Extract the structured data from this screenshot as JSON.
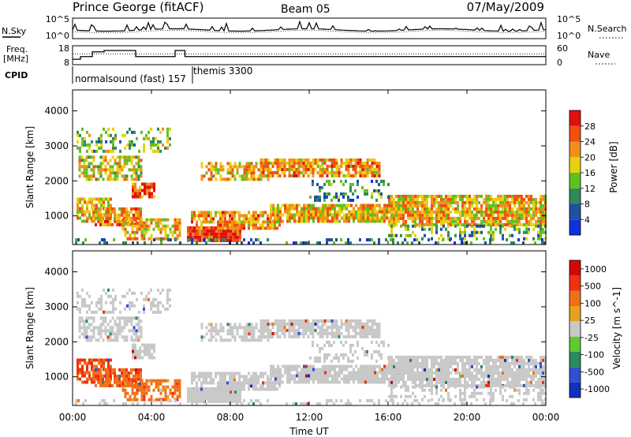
{
  "header": {
    "station": "Prince George (fitACF)",
    "beam": "Beam 05",
    "date": "07/May/2009"
  },
  "noise_panel": {
    "left_label": "N.Sky",
    "right_label": "N.Search",
    "ticks_left": [
      "10^5",
      "10^0"
    ],
    "ticks_right": [
      "10^5",
      "10^0"
    ]
  },
  "freq_panel": {
    "left_label_1": "Freq.",
    "left_label_2": "[MHz]",
    "right_label": "Nave",
    "ticks_left": [
      "18",
      "8"
    ],
    "ticks_right": [
      "60",
      "0"
    ]
  },
  "cpid": {
    "label": "CPID",
    "modes": [
      "normalsound (fast) 157",
      "themis 3300"
    ]
  },
  "x_axis": {
    "label": "Time UT",
    "ticks": [
      "00:00",
      "04:00",
      "08:00",
      "12:00",
      "16:00",
      "20:00",
      "00:00"
    ]
  },
  "chart_data": [
    {
      "type": "heatmap",
      "title": "",
      "ylabel": "Slant Range [km]",
      "ylim": [
        180,
        4600
      ],
      "yticks": [
        1000,
        2000,
        3000,
        4000
      ],
      "colorbar": {
        "label": "Power [dB]",
        "ticks": [
          "4",
          "8",
          "12",
          "16",
          "20",
          "24",
          "28"
        ],
        "colors": [
          "#1030e0",
          "#2050a0",
          "#2e8a5a",
          "#60c020",
          "#e8d010",
          "#f09018",
          "#f05010",
          "#e01010"
        ]
      }
    },
    {
      "type": "heatmap",
      "title": "",
      "ylabel": "Slant Range [km]",
      "ylim": [
        180,
        4600
      ],
      "yticks": [
        1000,
        2000,
        3000,
        4000
      ],
      "colorbar": {
        "label": "Velocity [m s^-1]",
        "ticks": [
          "1000",
          "500",
          "100",
          "25",
          "-25",
          "-100",
          "-500",
          "-1000"
        ],
        "colors": [
          "#1030c0",
          "#3050d0",
          "#2a8a60",
          "#60c830",
          "#c8c8c8",
          "#e8a020",
          "#f07018",
          "#f03010",
          "#d00808"
        ]
      }
    }
  ],
  "scatter_regions": [
    {
      "t0": 0.2,
      "t1": 5.0,
      "r0": 2800,
      "r1": 3500,
      "dens": 0.35,
      "pow": 14,
      "vel": 0
    },
    {
      "t0": 0.3,
      "t1": 3.5,
      "r0": 2000,
      "r1": 2700,
      "dens": 0.6,
      "pow": 18,
      "vel": 0
    },
    {
      "t0": 0.2,
      "t1": 2.0,
      "r0": 800,
      "r1": 1500,
      "dens": 0.75,
      "pow": 20,
      "vel": -600
    },
    {
      "t0": 1.0,
      "t1": 3.5,
      "r0": 700,
      "r1": 1200,
      "dens": 0.8,
      "pow": 22,
      "vel": -400
    },
    {
      "t0": 3.0,
      "t1": 4.2,
      "r0": 1500,
      "r1": 1900,
      "dens": 0.85,
      "pow": 26,
      "vel": 0
    },
    {
      "t0": 2.5,
      "t1": 5.5,
      "r0": 300,
      "r1": 900,
      "dens": 0.7,
      "pow": 20,
      "vel": -300
    },
    {
      "t0": 5.8,
      "t1": 8.5,
      "r0": 250,
      "r1": 700,
      "dens": 0.95,
      "pow": 28,
      "vel": 0
    },
    {
      "t0": 6.0,
      "t1": 10.5,
      "r0": 600,
      "r1": 1100,
      "dens": 0.8,
      "pow": 22,
      "vel": 0
    },
    {
      "t0": 6.5,
      "t1": 10.0,
      "r0": 2000,
      "r1": 2500,
      "dens": 0.6,
      "pow": 20,
      "vel": 0
    },
    {
      "t0": 9.5,
      "t1": 15.5,
      "r0": 2100,
      "r1": 2600,
      "dens": 0.8,
      "pow": 22,
      "vel": 0
    },
    {
      "t0": 10.0,
      "t1": 16.5,
      "r0": 800,
      "r1": 1300,
      "dens": 0.85,
      "pow": 20,
      "vel": 0
    },
    {
      "t0": 16.0,
      "t1": 24.0,
      "r0": 700,
      "r1": 1600,
      "dens": 0.85,
      "pow": 20,
      "vel": 0
    },
    {
      "t0": 16.0,
      "t1": 24.0,
      "r0": 300,
      "r1": 700,
      "dens": 0.4,
      "pow": 12,
      "vel": 0
    },
    {
      "t0": 12.0,
      "t1": 16.0,
      "r0": 1400,
      "r1": 2000,
      "dens": 0.3,
      "pow": 10,
      "vel": 0
    },
    {
      "t0": 0.0,
      "t1": 24.0,
      "r0": 180,
      "r1": 320,
      "dens": 0.25,
      "pow": 8,
      "vel": 0
    }
  ]
}
